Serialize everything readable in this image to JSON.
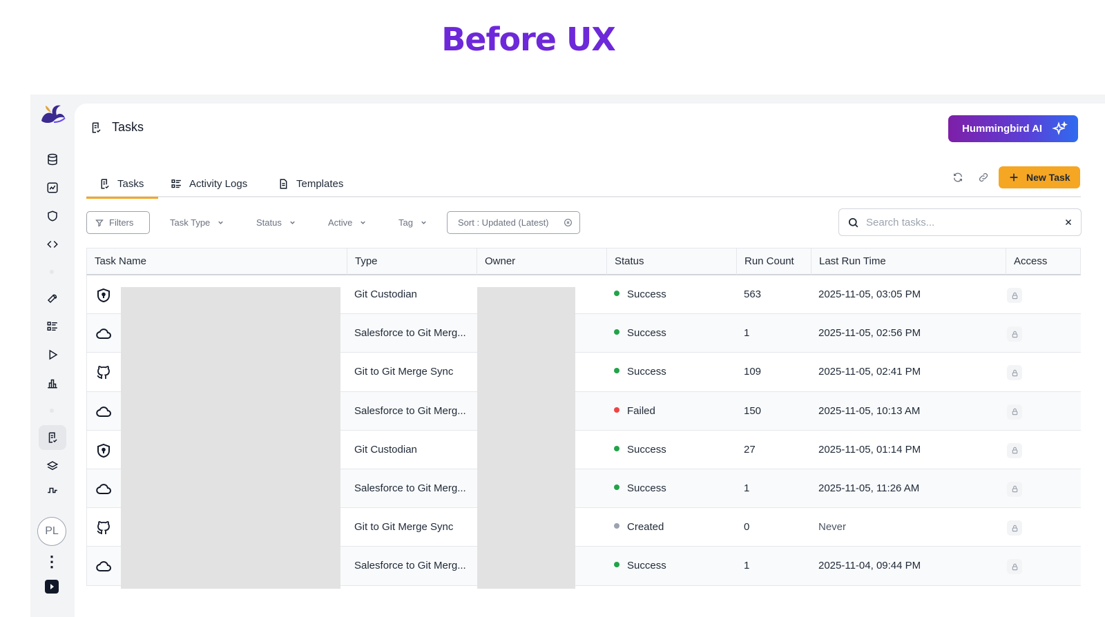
{
  "headline": "Before UX",
  "colors": {
    "accent": "#f5a623",
    "headline": "#6d28d9",
    "success": "#22a34a",
    "failed": "#ef4444",
    "created": "#9ca3af"
  },
  "sidebar": {
    "items": [
      {
        "icon": "database-icon"
      },
      {
        "icon": "chart-icon"
      },
      {
        "icon": "shield-icon"
      },
      {
        "icon": "code-icon"
      },
      {
        "icon": "wrench-icon"
      },
      {
        "icon": "list-icon"
      },
      {
        "icon": "play-icon"
      },
      {
        "icon": "bar-chart-icon"
      },
      {
        "icon": "tasks-icon",
        "active": true
      },
      {
        "icon": "layers-icon"
      },
      {
        "icon": "flow-icon"
      }
    ],
    "avatar_initials": "PL",
    "more_glyph": "⋮"
  },
  "header": {
    "title": "Tasks",
    "ai_button": "Hummingbird AI"
  },
  "tabs": [
    {
      "label": "Tasks",
      "active": true
    },
    {
      "label": "Activity Logs"
    },
    {
      "label": "Templates"
    }
  ],
  "toolbar": {
    "new_task": "New Task"
  },
  "filters": {
    "filters_label": "Filters",
    "dropdowns": [
      "Task Type",
      "Status",
      "Active",
      "Tag"
    ],
    "sort_label": "Sort : Updated (Latest)",
    "search_placeholder": "Search tasks..."
  },
  "table": {
    "columns": [
      "Task Name",
      "Type",
      "Owner",
      "Status",
      "Run Count",
      "Last Run Time",
      "Access"
    ],
    "rows": [
      {
        "icon": "shield",
        "type": "Git Custodian",
        "status": "Success",
        "run_count": "563",
        "last_run": "2025-11-05, 03:05 PM"
      },
      {
        "icon": "cloud",
        "type": "Salesforce to Git Merg...",
        "status": "Success",
        "run_count": "1",
        "last_run": "2025-11-05, 02:56 PM"
      },
      {
        "icon": "github",
        "type": "Git to Git Merge Sync",
        "status": "Success",
        "run_count": "109",
        "last_run": "2025-11-05, 02:41 PM"
      },
      {
        "icon": "cloud",
        "type": "Salesforce to Git Merg...",
        "status": "Failed",
        "run_count": "150",
        "last_run": "2025-11-05, 10:13 AM"
      },
      {
        "icon": "shield",
        "type": "Git Custodian",
        "status": "Success",
        "run_count": "27",
        "last_run": "2025-11-05, 01:14 PM"
      },
      {
        "icon": "cloud",
        "type": "Salesforce to Git Merg...",
        "status": "Success",
        "run_count": "1",
        "last_run": "2025-11-05, 11:26 AM"
      },
      {
        "icon": "github",
        "type": "Git to Git Merge Sync",
        "status": "Created",
        "run_count": "0",
        "last_run": "Never"
      },
      {
        "icon": "cloud",
        "type": "Salesforce to Git Merg...",
        "status": "Success",
        "run_count": "1",
        "last_run": "2025-11-04, 09:44 PM"
      }
    ]
  }
}
